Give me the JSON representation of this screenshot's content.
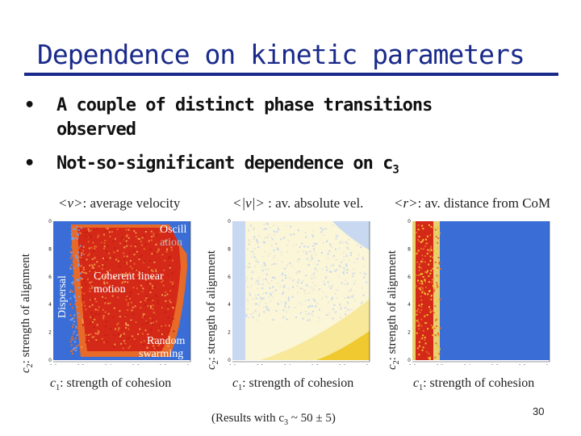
{
  "slide": {
    "title": "Dependence on kinetic parameters",
    "bullets": [
      {
        "text": "A couple of distinct phase transitions observed",
        "line1": "A couple of distinct phase transitions",
        "line2": "observed"
      },
      {
        "text": "Not-so-significant dependence on c3",
        "line": "Not-so-significant dependence on c",
        "sub": "3"
      }
    ],
    "note": {
      "prefix": "(Results with c",
      "sub": "3",
      "suffix": " ~ 50 ± 5)"
    },
    "page_number": "30"
  },
  "panels": [
    {
      "title_sym": "<v>",
      "title_text": ": average velocity",
      "ylabel_sym": "c",
      "ylabel_sub": "2",
      "ylabel_text": ": strength of alignment",
      "xlabel_sym": "c",
      "xlabel_sub": "1",
      "xlabel_text": ": strength of cohesion",
      "annotations": {
        "oscillation": "Oscill",
        "oscillation2": "ation",
        "coherent1": "Coherent linear",
        "coherent2": "motion",
        "random1": "Random",
        "random2": "swarming",
        "dispersal": "Dispersal"
      }
    },
    {
      "title_sym": "<|v|>",
      "title_text": " : av. absolute vel.",
      "ylabel_sym": "c",
      "ylabel_sub": "2",
      "ylabel_text": ": strength of alignment",
      "xlabel_sym": "c",
      "xlabel_sub": "1",
      "xlabel_text": ": strength of cohesion"
    },
    {
      "title_sym": "<r>",
      "title_text": ": av. distance from CoM",
      "ylabel_sym": "c",
      "ylabel_sub": "2",
      "ylabel_text": ": strength of alignment",
      "xlabel_sym": "c",
      "xlabel_sub": "1",
      "xlabel_text": ": strength of cohesion"
    }
  ],
  "chart_data": [
    {
      "type": "heatmap",
      "title": "<v>: average velocity",
      "xlabel": "c1: strength of cohesion",
      "ylabel": "c2: strength of alignment",
      "xlim": [
        0,
        1
      ],
      "ylim": [
        0,
        1
      ],
      "x_ticks": [
        "0.0",
        "0.2",
        "0.4",
        "0.6",
        "0.8",
        "1.0"
      ],
      "y_ticks": [
        "0.0",
        "0.2",
        "0.4",
        "0.6",
        "0.8",
        "1.0"
      ]
    },
    {
      "type": "heatmap",
      "title": "<|v|> : av. absolute vel.",
      "xlabel": "c1: strength of cohesion",
      "ylabel": "c2: strength of alignment",
      "xlim": [
        0,
        1
      ],
      "ylim": [
        0,
        1
      ],
      "x_ticks": [
        "0.0",
        "0.2",
        "0.4",
        "0.6",
        "0.8",
        "1.0"
      ],
      "y_ticks": [
        "0.0",
        "0.2",
        "0.4",
        "0.6",
        "0.8",
        "1.0"
      ]
    },
    {
      "type": "heatmap",
      "title": "<r>: av. distance from CoM",
      "xlabel": "c1: strength of cohesion",
      "ylabel": "c2: strength of alignment",
      "xlim": [
        0,
        1
      ],
      "ylim": [
        0,
        1
      ],
      "x_ticks": [
        "0.0",
        "0.2",
        "0.4",
        "0.6",
        "0.8",
        "1.0"
      ],
      "y_ticks": [
        "0.0",
        "0.2",
        "0.4",
        "0.6",
        "0.8",
        "1.0"
      ]
    }
  ],
  "colors": {
    "title": "#1a2a8a",
    "heat_red": "#d42818",
    "heat_orange": "#e86a28",
    "heat_blue": "#3a6ed6",
    "pale_yellow": "#fbf6d8",
    "pale_blue": "#c8d8f0",
    "yellow": "#f0c830"
  }
}
